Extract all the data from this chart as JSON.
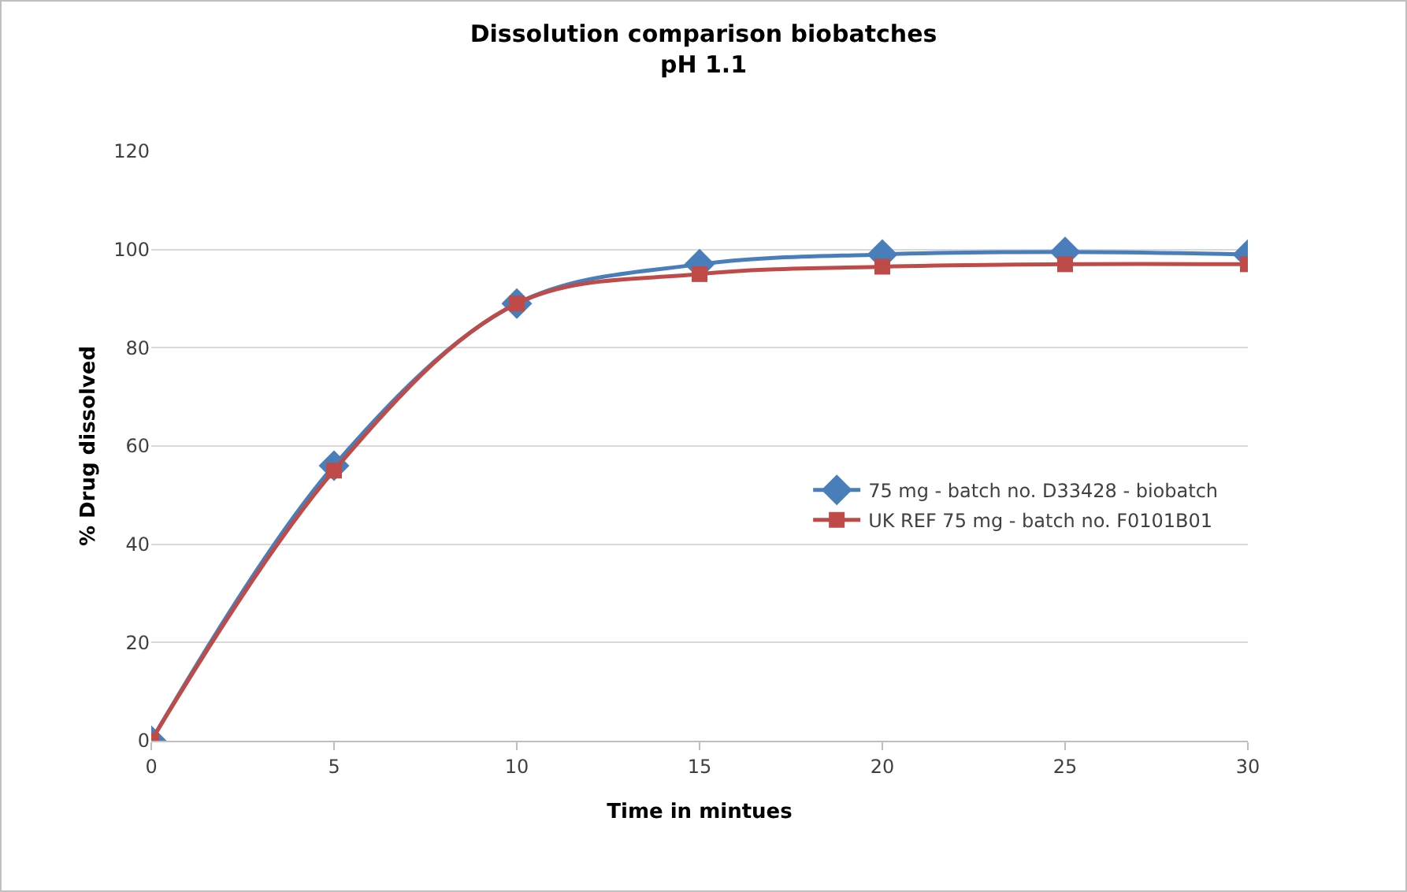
{
  "chart_data": {
    "type": "line",
    "title": "Dissolution comparison biobatches",
    "subtitle": "pH 1.1",
    "xlabel": "Time in mintues",
    "ylabel": "% Drug dissolved",
    "x": [
      0,
      5,
      10,
      15,
      20,
      25,
      30
    ],
    "series": [
      {
        "name": "75 mg - batch no. D33428 - biobatch",
        "color": "#4a7ebb",
        "marker": "diamond",
        "values": [
          0,
          56,
          89,
          97,
          99,
          99.5,
          99
        ]
      },
      {
        "name": "UK REF 75 mg - batch no. F0101B01",
        "color": "#be4b48",
        "marker": "square",
        "values": [
          0,
          55,
          89,
          95,
          96.5,
          97,
          97
        ]
      }
    ],
    "xlim": [
      0,
      30
    ],
    "xticks": [
      0,
      5,
      10,
      15,
      20,
      25,
      30
    ],
    "ylim": [
      0,
      120
    ],
    "yticks": [
      0,
      20,
      40,
      60,
      80,
      100,
      120
    ],
    "grid": "y",
    "legend": "right",
    "line_style": "solid"
  }
}
